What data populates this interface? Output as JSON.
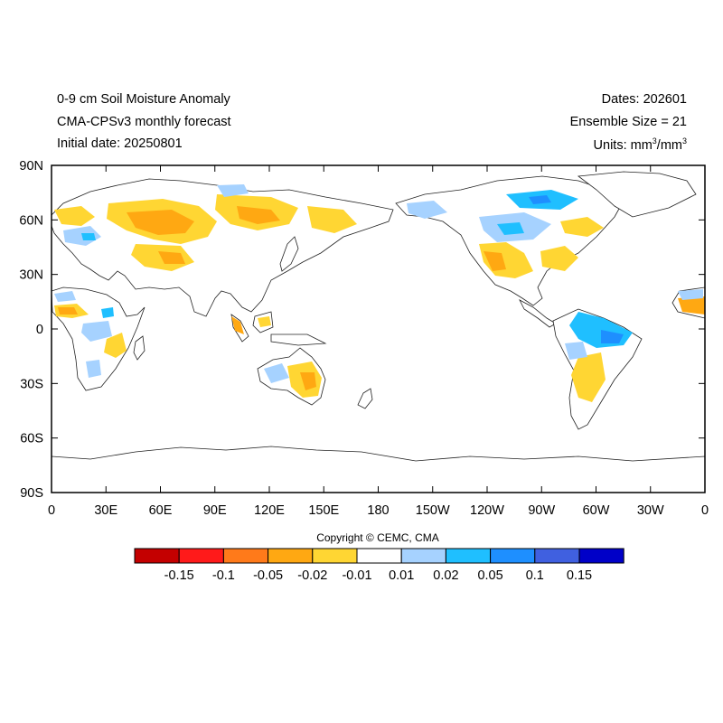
{
  "header": {
    "title_lines": [
      "0-9 cm Soil Moisture Anomaly",
      "CMA-CPSv3 monthly forecast",
      "Initial date: 20250801"
    ],
    "dates": "Dates: 202601",
    "ensemble": "Ensemble Size = 21",
    "units_prefix": "Units: mm",
    "units_mid": "/mm",
    "units_sup": "3"
  },
  "map": {
    "lat_labels": [
      "90N",
      "60N",
      "30N",
      "0",
      "30S",
      "60S",
      "90S"
    ],
    "lon_labels": [
      "0",
      "30E",
      "60E",
      "90E",
      "120E",
      "150E",
      "180",
      "150W",
      "120W",
      "90W",
      "60W",
      "30W",
      "0"
    ]
  },
  "colorbar": {
    "colors": [
      "#c40000",
      "#ff1a1a",
      "#ff7a1a",
      "#ffa812",
      "#ffd633",
      "#ffffff",
      "#a6d2ff",
      "#1fbfff",
      "#1e8fff",
      "#4060e0",
      "#0000c8"
    ],
    "labels": [
      "-0.15",
      "-0.1",
      "-0.05",
      "-0.02",
      "-0.01",
      "0.01",
      "0.02",
      "0.05",
      "0.1",
      "0.15"
    ]
  },
  "copyright": "Copyright © CEMC, CMA"
}
